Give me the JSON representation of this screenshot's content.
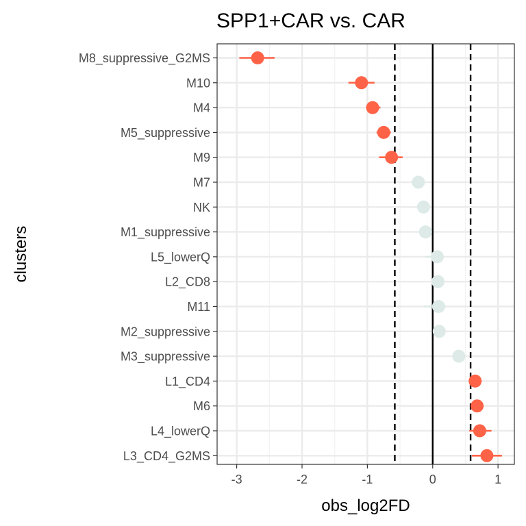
{
  "chart_data": {
    "type": "scatter",
    "title": "SPP1+CAR vs. CAR",
    "xlabel": "obs_log2FD",
    "ylabel": "clusters",
    "xlim": [
      -3.3,
      1.25
    ],
    "x_ticks": [
      -3,
      -2,
      -1,
      0,
      1
    ],
    "x_tick_labels": [
      "-3",
      "-2",
      "-1",
      "0",
      "1"
    ],
    "grid": true,
    "legend": "none",
    "reference_lines": [
      {
        "x": -0.58,
        "style": "dashed"
      },
      {
        "x": 0,
        "style": "solid"
      },
      {
        "x": 0.58,
        "style": "dashed"
      }
    ],
    "colors": {
      "significant": "#FF6347",
      "not_significant": "#DDEAE7"
    },
    "points": [
      {
        "cluster": "M8_suppressive_G2MS",
        "x": -2.68,
        "lo": -2.96,
        "hi": -2.42,
        "significant": true
      },
      {
        "cluster": "M10",
        "x": -1.09,
        "lo": -1.29,
        "hi": -0.89,
        "significant": true
      },
      {
        "cluster": "M4",
        "x": -0.92,
        "lo": -1.02,
        "hi": -0.8,
        "significant": true
      },
      {
        "cluster": "M5_suppressive",
        "x": -0.75,
        "lo": -0.86,
        "hi": -0.64,
        "significant": true
      },
      {
        "cluster": "M9",
        "x": -0.63,
        "lo": -0.82,
        "hi": -0.46,
        "significant": true
      },
      {
        "cluster": "M7",
        "x": -0.22,
        "lo": -0.3,
        "hi": -0.14,
        "significant": false
      },
      {
        "cluster": "NK",
        "x": -0.14,
        "lo": -0.22,
        "hi": -0.06,
        "significant": false
      },
      {
        "cluster": "M1_suppressive",
        "x": -0.11,
        "lo": -0.19,
        "hi": -0.03,
        "significant": false
      },
      {
        "cluster": "L5_lowerQ",
        "x": 0.07,
        "lo": -0.12,
        "hi": 0.17,
        "significant": false
      },
      {
        "cluster": "L2_CD8",
        "x": 0.08,
        "lo": 0.02,
        "hi": 0.14,
        "significant": false
      },
      {
        "cluster": "M11",
        "x": 0.09,
        "lo": -0.14,
        "hi": 0.2,
        "significant": false
      },
      {
        "cluster": "M2_suppressive",
        "x": 0.1,
        "lo": 0.04,
        "hi": 0.16,
        "significant": false
      },
      {
        "cluster": "M3_suppressive",
        "x": 0.4,
        "lo": 0.32,
        "hi": 0.48,
        "significant": false
      },
      {
        "cluster": "L1_CD4",
        "x": 0.65,
        "lo": 0.6,
        "hi": 0.7,
        "significant": true
      },
      {
        "cluster": "M6",
        "x": 0.68,
        "lo": 0.58,
        "hi": 0.76,
        "significant": true
      },
      {
        "cluster": "L4_lowerQ",
        "x": 0.72,
        "lo": 0.56,
        "hi": 0.9,
        "significant": true
      },
      {
        "cluster": "L3_CD4_G2MS",
        "x": 0.83,
        "lo": 0.6,
        "hi": 1.06,
        "significant": true
      }
    ]
  }
}
